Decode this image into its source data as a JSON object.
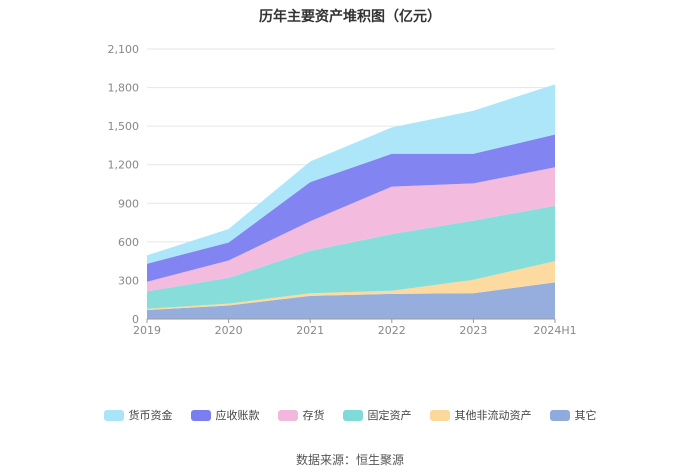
{
  "chart_data": {
    "type": "area",
    "stacked": true,
    "title": "历年主要资产堆积图（亿元）",
    "categories": [
      "2019",
      "2020",
      "2021",
      "2022",
      "2023",
      "2024H1"
    ],
    "y_ticks": [
      "0",
      "300",
      "600",
      "900",
      "1,200",
      "1,500",
      "1,800",
      "2,100"
    ],
    "ylim": [
      0,
      2100
    ],
    "series": [
      {
        "name": "其它",
        "color": "#8faadc",
        "values": [
          70,
          105,
          180,
          195,
          200,
          285
        ]
      },
      {
        "name": "其他非流动资产",
        "color": "#fdd89a",
        "values": [
          10,
          15,
          20,
          25,
          105,
          165
        ]
      },
      {
        "name": "固定资产",
        "color": "#7fdbd8",
        "values": [
          135,
          200,
          330,
          440,
          460,
          430
        ]
      },
      {
        "name": "存货",
        "color": "#f2b8dc",
        "values": [
          75,
          135,
          230,
          370,
          290,
          300
        ]
      },
      {
        "name": "应收账款",
        "color": "#7b7ef0",
        "values": [
          140,
          140,
          305,
          255,
          230,
          255
        ]
      },
      {
        "name": "货币资金",
        "color": "#a9e4f9",
        "values": [
          65,
          105,
          160,
          205,
          335,
          390
        ]
      }
    ],
    "legend_order": [
      "货币资金",
      "应收账款",
      "存货",
      "固定资产",
      "其他非流动资产",
      "其它"
    ],
    "legend_position": "bottom"
  },
  "source": "数据来源：恒生聚源"
}
